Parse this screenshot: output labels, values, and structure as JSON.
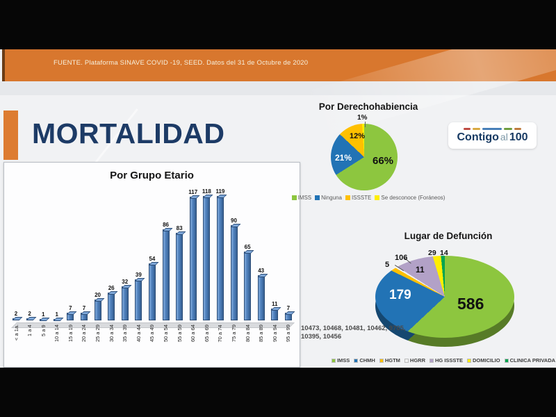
{
  "source_bar": {
    "text": "FUENTE. Plataforma SINAVE COVID -19, SEED. Datos del 31 de Octubre de 2020"
  },
  "page": {
    "title": "MORTALIDAD"
  },
  "logo": {
    "part1": "Contigo",
    "part2": "al",
    "part3": "100",
    "dash_colors": [
      "#bf4b42",
      "#d9a940",
      "#477fb8",
      "#6f9e3f",
      "#bf7a3d"
    ]
  },
  "chart_data": [
    {
      "type": "bar",
      "title": "Por Grupo Etario",
      "categories": [
        "< a 1a.",
        "1 a 4",
        "5 a 9",
        "10 a 14",
        "15 a 19",
        "20 a 24",
        "25 a 29",
        "30 a 34",
        "35 a 39",
        "40 a 44",
        "45 a 49",
        "50 a 54",
        "55 a 59",
        "60 a 64",
        "65 a 69",
        "70 a 74",
        "75 a 79",
        "80 a 84",
        "85 a 89",
        "90 a 94",
        "95 a 99"
      ],
      "values": [
        2,
        2,
        1,
        1,
        7,
        7,
        20,
        26,
        32,
        39,
        54,
        86,
        83,
        117,
        118,
        119,
        90,
        65,
        43,
        11,
        7
      ],
      "bar_color": "#4f81bd",
      "ylim": [
        0,
        125
      ],
      "grid": false,
      "value_labels": true,
      "xlabel": "",
      "ylabel": ""
    },
    {
      "type": "pie",
      "title": "Por Derechohabiencia",
      "labels": [
        "IMSS",
        "Ninguna",
        "ISSSTE",
        "Se desconoce (Foráneos)"
      ],
      "values_pct": [
        66,
        21,
        12,
        1
      ],
      "colors": [
        "#8dc63f",
        "#2273b5",
        "#ffc000",
        "#ffee00"
      ],
      "legend_position": "bottom"
    },
    {
      "type": "pie",
      "title": "Lugar de Defunción",
      "style": "3d",
      "labels": [
        "IMSS",
        "CHMH",
        "HGTM",
        "HGRR",
        "HG ISSSTE",
        "DOMICILIO",
        "CLINICA PRIVADA"
      ],
      "values": [
        586,
        179,
        11,
        5,
        106,
        29,
        14
      ],
      "colors": [
        "#8dc63f",
        "#2273b5",
        "#ffc000",
        "#f2f2f2",
        "#b2a1c7",
        "#ffee00",
        "#00a550"
      ],
      "legend_position": "bottom",
      "note": "10473, 10468, 10481, 10462, 9705, 10395, 10456"
    }
  ]
}
